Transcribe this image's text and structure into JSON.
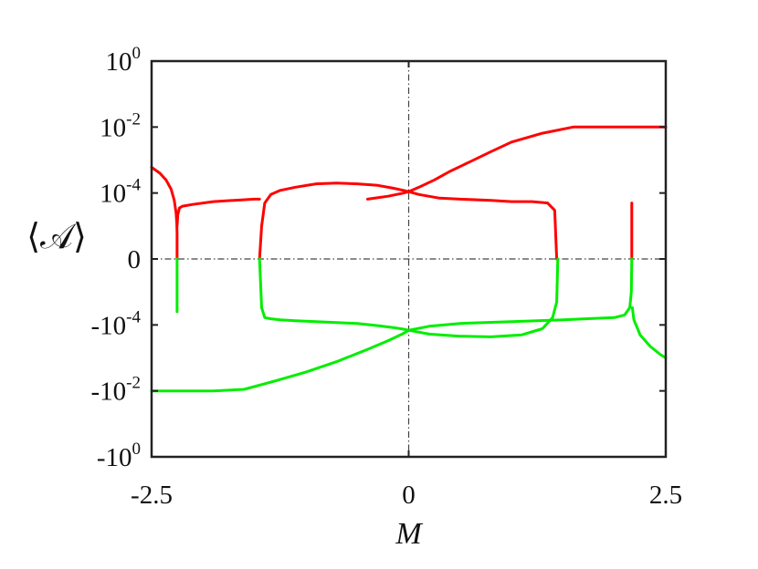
{
  "chart_data": {
    "type": "line",
    "title": "",
    "xlabel": "M",
    "ylabel": "⟨𝒜⟩",
    "xlim": [
      -2.5,
      2.5
    ],
    "yscale": "symlog (signed log, decades 10^-4 to 10^0, linear gap around 0)",
    "grid": false,
    "legend": "none",
    "reference_lines": [
      {
        "orientation": "vertical",
        "at": 0,
        "style": "dash-dot",
        "color": "#444444"
      },
      {
        "orientation": "horizontal",
        "at": 0,
        "style": "dash-dot",
        "color": "#444444"
      }
    ],
    "x_ticks": [
      {
        "value": -2.5,
        "label": "-2.5"
      },
      {
        "value": 0,
        "label": "0"
      },
      {
        "value": 2.5,
        "label": "2.5"
      }
    ],
    "y_ticks": [
      {
        "s": 4,
        "base": "10",
        "exp": "0"
      },
      {
        "s": 3,
        "base": "10",
        "exp": "-2"
      },
      {
        "s": 2,
        "base": "10",
        "exp": "-4"
      },
      {
        "s": 1,
        "base": "0",
        "exp": ""
      },
      {
        "s": 0,
        "base": "-10",
        "exp": "-4"
      },
      {
        "s": -1,
        "base": "-10",
        "exp": "-2"
      },
      {
        "s": -2,
        "base": "-10",
        "exp": "0"
      }
    ],
    "series": [
      {
        "color": "#ff0000",
        "segments": [
          {
            "x": [
              -2.5,
              -2.42,
              -2.36,
              -2.31,
              -2.28,
              -2.262,
              -2.255,
              -2.252,
              -2.252
            ],
            "y": [
              0.0006,
              0.0004,
              0.00025,
              0.00013,
              6e-05,
              2.5e-05,
              1.2e-05,
              6e-06,
              0
            ]
          },
          {
            "x": [
              -2.252,
              -2.245,
              -2.23,
              -2.2,
              -2.1,
              -1.9,
              -1.7,
              -1.5,
              -1.45
            ],
            "y": [
              1e-05,
              2.2e-05,
              3.5e-05,
              4e-05,
              4.5e-05,
              5.5e-05,
              6e-05,
              6.5e-05,
              6.5e-05
            ]
          },
          {
            "x": [
              -1.45,
              -1.43,
              -1.4,
              -1.34,
              -1.25,
              -1.1,
              -0.9,
              -0.7,
              -0.5,
              -0.3,
              -0.15,
              -0.05,
              0.0,
              0.1,
              0.3,
              0.5,
              0.8,
              1.0,
              1.2,
              1.35,
              1.42,
              1.44
            ],
            "y": [
              0,
              1e-05,
              5e-05,
              9e-05,
              0.00012,
              0.00015,
              0.00019,
              0.0002,
              0.00019,
              0.00017,
              0.00014,
              0.00012,
              0.00011,
              9e-05,
              7e-05,
              6.5e-05,
              6e-05,
              5.5e-05,
              5.5e-05,
              5e-05,
              3e-05,
              0
            ]
          },
          {
            "x": [
              -0.4,
              -0.2,
              -0.05,
              0.0,
              0.1,
              0.25,
              0.4,
              0.6,
              0.8,
              1.0,
              1.3,
              1.6,
              1.9,
              2.2,
              2.5
            ],
            "y": [
              6.5e-05,
              8e-05,
              0.0001,
              0.00011,
              0.00015,
              0.00025,
              0.00045,
              0.0009,
              0.0018,
              0.0035,
              0.0065,
              0.01,
              0.016,
              0.024,
              0.035
            ]
          },
          {
            "x": [
              2.17,
              2.17
            ],
            "y": [
              0,
              5e-05
            ]
          }
        ]
      },
      {
        "color": "#00ee00",
        "segments": [
          {
            "x": [
              -2.252,
              -2.252
            ],
            "y": [
              0,
              -4e-05
            ]
          },
          {
            "x": [
              -1.45,
              -1.43,
              -1.4,
              -1.34,
              -1.25,
              -1.1,
              -0.9,
              -0.7,
              -0.5,
              -0.3,
              -0.15,
              -0.05,
              0.0,
              0.2,
              0.5,
              0.8,
              1.1,
              1.3,
              1.4,
              1.44,
              1.45
            ],
            "y": [
              0,
              -3e-05,
              -6e-05,
              -6.5e-05,
              -7e-05,
              -7.5e-05,
              -8e-05,
              -8.5e-05,
              -9e-05,
              -0.000105,
              -0.00012,
              -0.000135,
              -0.000145,
              -0.00019,
              -0.00022,
              -0.00023,
              -0.0002,
              -0.00013,
              -6e-05,
              -2e-05,
              0
            ]
          },
          {
            "x": [
              -2.5,
              -2.2,
              -1.9,
              -1.6,
              -1.3,
              -1.0,
              -0.7,
              -0.4,
              -0.2,
              -0.05,
              0.0,
              0.2,
              0.5,
              1.0,
              1.5,
              2.0,
              2.1,
              2.15,
              2.165,
              2.17
            ],
            "y": [
              -0.04,
              -0.025,
              -0.015,
              -0.009,
              -0.005,
              -0.0027,
              -0.0013,
              -0.00055,
              -0.0003,
              -0.00018,
              -0.000145,
              -0.00011,
              -9e-05,
              -8e-05,
              -7e-05,
              -6e-05,
              -5e-05,
              -3e-05,
              -1e-05,
              0
            ]
          },
          {
            "x": [
              2.175,
              2.19,
              2.25,
              2.35,
              2.45,
              2.5
            ],
            "y": [
              -3e-05,
              -7e-05,
              -0.0002,
              -0.00045,
              -0.0008,
              -0.001
            ]
          }
        ]
      }
    ]
  }
}
